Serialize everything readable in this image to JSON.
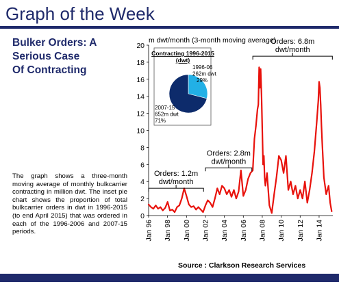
{
  "header": {
    "title": "Graph of the Week"
  },
  "subtitle": {
    "line1": "Bulker Orders: A",
    "line2": "Serious Case",
    "line3": "Of Contracting"
  },
  "description": "The graph shows a three-month moving average of monthly bulkcarrier contracting in million dwt. The inset pie chart shows the proportion of total bulkcarrier orders in dwt in 1996-2015 (to end April 2015) that was ordered in each of the 1996-2006 and 2007-15 periods.",
  "source": "Source : Clarkson Research Services",
  "colors": {
    "line": "#e8120c",
    "header": "#1f2a6b",
    "pie_dark": "#0d2b6b",
    "pie_light": "#22b0e6"
  },
  "chart_data": [
    {
      "type": "line",
      "ylabel": "m dwt/month (3-month moving average)",
      "ylim": [
        0,
        20
      ],
      "yticks": [
        "0",
        "2",
        "4",
        "6",
        "8",
        "10",
        "12",
        "14",
        "16",
        "18",
        "20"
      ],
      "xticks": [
        "Jan 96",
        "Jan 98",
        "Jan 00",
        "Jan 02",
        "Jan 04",
        "Jan 06",
        "Jan 08",
        "Jan 10",
        "Jan 12",
        "Jan 14"
      ],
      "grid": false,
      "series": [
        {
          "color": "#e8120c",
          "x": [
            1996.0,
            1996.25,
            1996.5,
            1996.75,
            1997.0,
            1997.25,
            1997.5,
            1997.75,
            1998.0,
            1998.25,
            1998.5,
            1998.75,
            1999.0,
            1999.25,
            1999.5,
            1999.75,
            2000.0,
            2000.25,
            2000.5,
            2000.75,
            2001.0,
            2001.25,
            2001.5,
            2001.75,
            2002.0,
            2002.25,
            2002.5,
            2002.75,
            2003.0,
            2003.25,
            2003.5,
            2003.75,
            2004.0,
            2004.25,
            2004.5,
            2004.75,
            2005.0,
            2005.25,
            2005.5,
            2005.75,
            2006.0,
            2006.25,
            2006.5,
            2006.75,
            2007.0,
            2007.17,
            2007.33,
            2007.5,
            2007.58,
            2007.67,
            2007.75,
            2007.83,
            2007.92,
            2008.0,
            2008.08,
            2008.17,
            2008.25,
            2008.33,
            2008.5,
            2008.75,
            2009.0,
            2009.25,
            2009.5,
            2009.75,
            2010.0,
            2010.25,
            2010.5,
            2010.75,
            2011.0,
            2011.25,
            2011.5,
            2011.75,
            2012.0,
            2012.25,
            2012.5,
            2012.75,
            2013.0,
            2013.25,
            2013.5,
            2013.75,
            2013.92,
            2014.0,
            2014.08,
            2014.17,
            2014.25,
            2014.33,
            2014.5,
            2014.75,
            2015.0,
            2015.17,
            2015.33
          ],
          "y": [
            1.3,
            1.0,
            0.8,
            1.2,
            0.8,
            1.0,
            0.6,
            0.9,
            1.6,
            0.6,
            0.7,
            0.4,
            1.0,
            1.2,
            2.0,
            3.2,
            2.3,
            1.3,
            1.0,
            1.1,
            0.7,
            1.0,
            0.7,
            0.4,
            1.2,
            1.8,
            1.5,
            1.0,
            2.0,
            3.2,
            2.5,
            3.5,
            3.2,
            2.5,
            3.0,
            2.2,
            3.0,
            2.0,
            2.8,
            5.3,
            2.3,
            3.0,
            4.3,
            5.0,
            5.3,
            9.0,
            10.5,
            12.5,
            13.0,
            17.4,
            15.0,
            17.2,
            14.0,
            10.0,
            6.0,
            7.0,
            4.5,
            3.5,
            5.0,
            1.2,
            0.3,
            2.5,
            4.5,
            7.0,
            6.5,
            5.0,
            7.0,
            3.0,
            4.0,
            2.5,
            3.5,
            2.0,
            3.0,
            2.0,
            4.0,
            1.5,
            3.0,
            5.0,
            7.5,
            11.0,
            13.5,
            15.7,
            15.0,
            13.0,
            10.5,
            8.5,
            4.5,
            2.5,
            3.5,
            1.5,
            0.5
          ]
        }
      ],
      "annotations": [
        {
          "line1": "Orders: 1.2m",
          "line2": "dwt/month",
          "from": 1996.0,
          "to": 2001.8,
          "at": 3.2
        },
        {
          "line1": "Orders: 2.8m",
          "line2": "dwt/month",
          "from": 2002.0,
          "to": 2006.9,
          "at": 5.6
        },
        {
          "line1": "Orders: 6.8m",
          "line2": "dwt/month",
          "from": 2007.0,
          "to": 2015.4,
          "at": 18.7
        }
      ]
    },
    {
      "type": "pie",
      "title": "Contracting 1996-2015 (dwt)",
      "slices": [
        {
          "label": "1996-06",
          "amount": "262m dwt",
          "pct": "29%",
          "value": 29,
          "color": "#22b0e6"
        },
        {
          "label": "2007-15",
          "amount": "652m dwt",
          "pct": "71%",
          "value": 71,
          "color": "#0d2b6b"
        }
      ]
    }
  ]
}
